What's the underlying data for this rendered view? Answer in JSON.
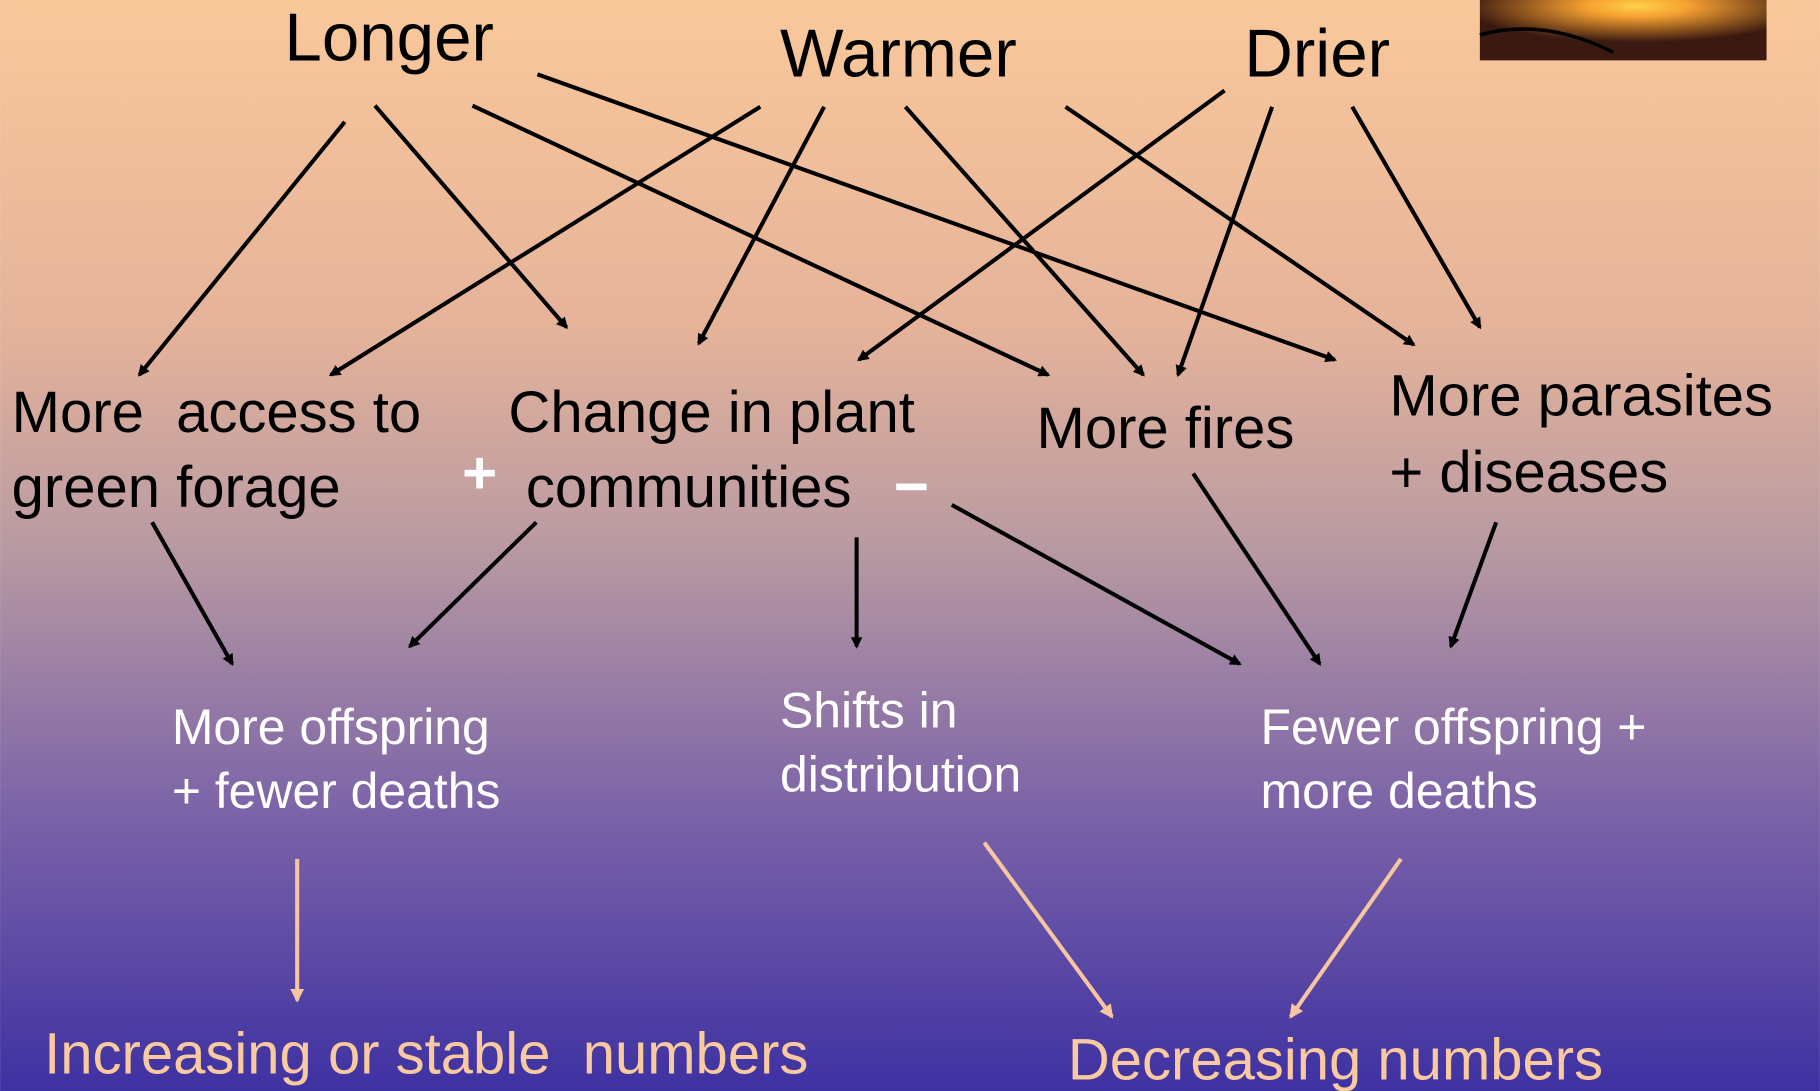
{
  "causes": [
    "Longer",
    "Warmer",
    "Drier"
  ],
  "effects": [
    {
      "lines": [
        "More  access to",
        "green forage"
      ]
    },
    {
      "lines": [
        "Change in plant",
        "communities"
      ]
    },
    {
      "lines": [
        "More fires"
      ]
    },
    {
      "lines": [
        "More parasites",
        "+ diseases"
      ]
    }
  ],
  "signs": {
    "positive": "+",
    "negative": "−"
  },
  "outcomes": [
    {
      "lines": [
        "More offspring",
        "+ fewer deaths"
      ]
    },
    {
      "lines": [
        "Shifts in",
        "distribution"
      ]
    },
    {
      "lines": [
        "Fewer offspring +",
        "more deaths"
      ]
    }
  ],
  "results": [
    "Increasing or stable  numbers",
    "Decreasing numbers"
  ]
}
